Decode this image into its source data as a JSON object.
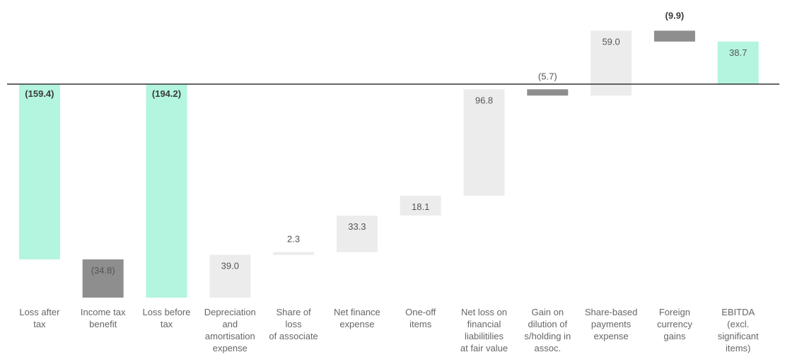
{
  "chart_data": {
    "type": "waterfall",
    "title": "",
    "colors": {
      "total": "#b3f5de",
      "decrease": "#8e8e8e",
      "increase": "#ececec",
      "axis": "#333333"
    },
    "bars": [
      {
        "category": [
          "Loss after",
          "tax"
        ],
        "value": -159.4,
        "label": "(159.4)",
        "start": 0,
        "end": -159.4,
        "kind": "total",
        "bold": true
      },
      {
        "category": [
          "Income tax",
          "benefit"
        ],
        "value": -34.8,
        "label": "(34.8)",
        "start": -159.4,
        "end": -194.2,
        "kind": "decrease",
        "bold": false
      },
      {
        "category": [
          "Loss before",
          "tax"
        ],
        "value": -194.2,
        "label": "(194.2)",
        "start": 0,
        "end": -194.2,
        "kind": "total",
        "bold": true
      },
      {
        "category": [
          "Depreciation",
          "and",
          "amortisation",
          "expense"
        ],
        "value": 39.0,
        "label": "39.0",
        "start": -194.2,
        "end": -155.2,
        "kind": "increase",
        "bold": false
      },
      {
        "category": [
          "Share of",
          "loss",
          "of associate"
        ],
        "value": 2.3,
        "label": "2.3",
        "start": -155.2,
        "end": -152.9,
        "kind": "increase",
        "bold": false
      },
      {
        "category": [
          "Net finance",
          "expense"
        ],
        "value": 33.3,
        "label": "33.3",
        "start": -152.9,
        "end": -119.6,
        "kind": "increase",
        "bold": false
      },
      {
        "category": [
          "One-off",
          "items"
        ],
        "value": 18.1,
        "label": "18.1",
        "start": -119.6,
        "end": -101.5,
        "kind": "increase",
        "bold": false
      },
      {
        "category": [
          "Net loss on",
          "financial",
          "liabilitilies",
          "at fair value"
        ],
        "value": 96.8,
        "label": "96.8",
        "start": -101.5,
        "end": -4.7,
        "kind": "increase",
        "bold": false
      },
      {
        "category": [
          "Gain on",
          "dilution of",
          "s/holding in",
          "assoc."
        ],
        "value": -5.7,
        "label": "(5.7)",
        "start": -4.7,
        "end": -10.4,
        "kind": "decrease",
        "bold": false
      },
      {
        "category": [
          "Share-based",
          "payments",
          "expense"
        ],
        "value": 59.0,
        "label": "59.0",
        "start": -10.4,
        "end": 48.6,
        "kind": "increase",
        "bold": false
      },
      {
        "category": [
          "Foreign",
          "currency",
          "gains"
        ],
        "value": -9.9,
        "label": "(9.9)",
        "start": 48.6,
        "end": 38.7,
        "kind": "decrease",
        "bold": true
      },
      {
        "category": [
          "EBITDA",
          "(excl.",
          "significant",
          "items)"
        ],
        "value": 38.7,
        "label": "38.7",
        "start": 0,
        "end": 38.7,
        "kind": "total",
        "bold": false
      }
    ],
    "ylim": [
      -194.2,
      48.6
    ]
  }
}
